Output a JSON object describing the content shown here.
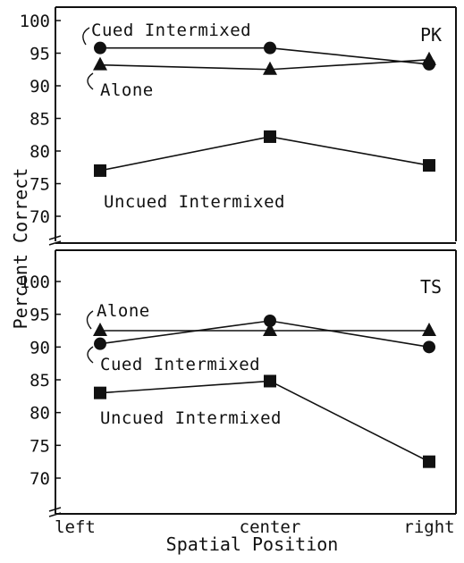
{
  "chart_data": [
    {
      "type": "line",
      "panel_label": "PK",
      "categories": [
        "left",
        "center",
        "right"
      ],
      "ylim": [
        70,
        100
      ],
      "yticks": [
        "100",
        "95",
        "90",
        "85",
        "80",
        "75",
        "70"
      ],
      "series": [
        {
          "name": "Cued Intermixed",
          "marker": "circle",
          "values": [
            95.8,
            95.8,
            93.3
          ]
        },
        {
          "name": "Alone",
          "marker": "triangle",
          "values": [
            93.2,
            92.5,
            94.0
          ]
        },
        {
          "name": "Uncued Intermixed",
          "marker": "square",
          "values": [
            77.0,
            82.2,
            77.8
          ]
        }
      ]
    },
    {
      "type": "line",
      "panel_label": "TS",
      "categories": [
        "left",
        "center",
        "right"
      ],
      "ylim": [
        70,
        100
      ],
      "yticks": [
        "100",
        "95",
        "90",
        "85",
        "80",
        "75",
        "70"
      ],
      "series": [
        {
          "name": "Alone",
          "marker": "triangle",
          "values": [
            92.5,
            92.5,
            92.5
          ]
        },
        {
          "name": "Cued Intermixed",
          "marker": "circle",
          "values": [
            90.5,
            94.0,
            90.0
          ]
        },
        {
          "name": "Uncued Intermixed",
          "marker": "square",
          "values": [
            83.0,
            84.8,
            72.5
          ]
        }
      ]
    }
  ],
  "axes": {
    "ylabel": "Percent Correct",
    "xlabel": "Spatial Position"
  },
  "annotations": {
    "pk_cued": "Cued Intermixed",
    "pk_alone": "Alone",
    "pk_uncued": "Uncued Intermixed",
    "ts_alone": "Alone",
    "ts_cued": "Cued Intermixed",
    "ts_uncued": "Uncued Intermixed"
  }
}
